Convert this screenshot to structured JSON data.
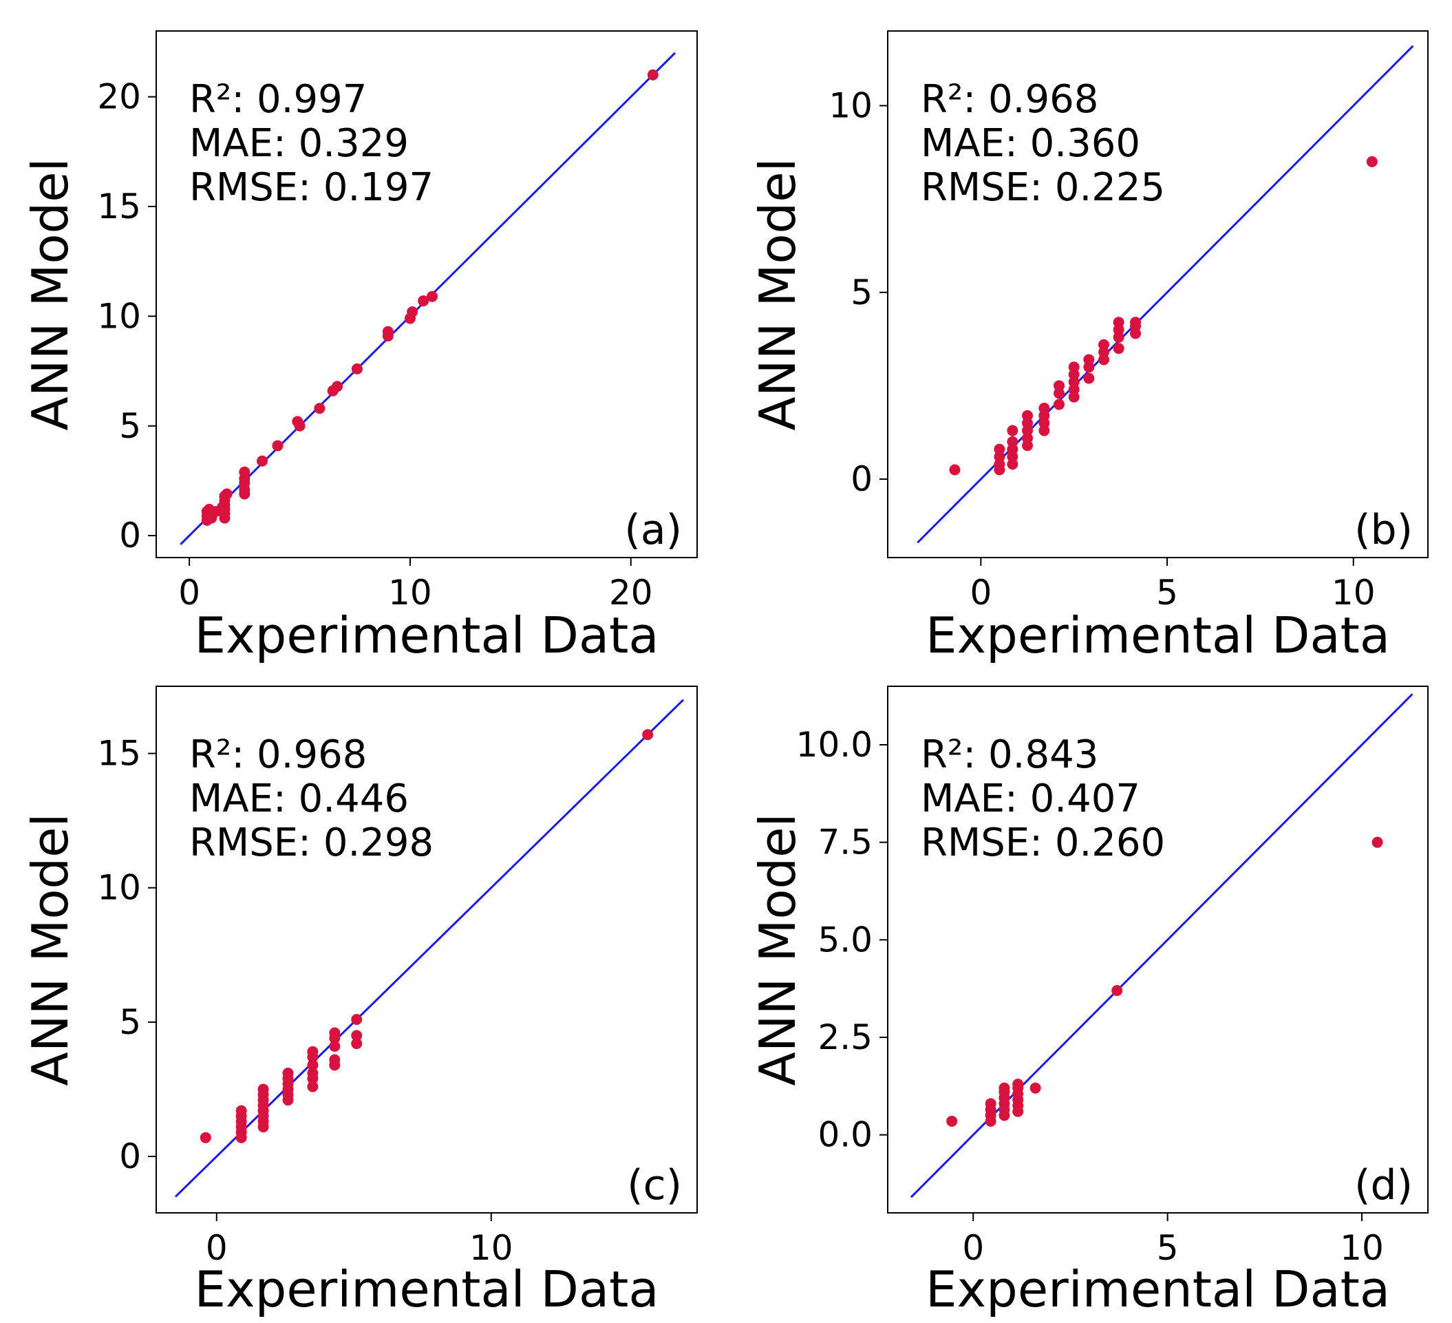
{
  "chart_data": [
    {
      "type": "scatter",
      "panel_label": "(a)",
      "xlabel": "Experimental Data",
      "ylabel": "ANN Model",
      "xlim": [
        -1.5,
        23.0
      ],
      "ylim": [
        -1.0,
        23.0
      ],
      "xticks": [
        0,
        10,
        20
      ],
      "yticks": [
        0,
        5,
        10,
        15,
        20
      ],
      "stats": [
        "R²: 0.997",
        "MAE: 0.329",
        "RMSE: 0.197"
      ],
      "fit_line": {
        "x": [
          -0.4,
          22.0
        ],
        "y": [
          -0.4,
          22.0
        ]
      },
      "points": [
        [
          0.8,
          0.7
        ],
        [
          0.8,
          0.9
        ],
        [
          0.8,
          1.1
        ],
        [
          0.9,
          1.2
        ],
        [
          1.0,
          1.0
        ],
        [
          1.0,
          0.8
        ],
        [
          1.2,
          1.1
        ],
        [
          1.6,
          0.8
        ],
        [
          1.6,
          1.0
        ],
        [
          1.6,
          1.2
        ],
        [
          1.6,
          1.4
        ],
        [
          1.6,
          1.6
        ],
        [
          1.6,
          1.8
        ],
        [
          1.7,
          1.9
        ],
        [
          1.5,
          1.3
        ],
        [
          2.5,
          1.9
        ],
        [
          2.5,
          2.1
        ],
        [
          2.5,
          2.4
        ],
        [
          2.5,
          2.6
        ],
        [
          2.5,
          2.9
        ],
        [
          3.3,
          3.4
        ],
        [
          4.0,
          4.1
        ],
        [
          4.9,
          5.2
        ],
        [
          5.0,
          5.0
        ],
        [
          5.9,
          5.8
        ],
        [
          6.5,
          6.6
        ],
        [
          6.7,
          6.8
        ],
        [
          7.6,
          7.6
        ],
        [
          9.0,
          9.1
        ],
        [
          9.0,
          9.3
        ],
        [
          10.0,
          9.9
        ],
        [
          10.1,
          10.2
        ],
        [
          10.6,
          10.7
        ],
        [
          11.0,
          10.9
        ],
        [
          21.0,
          21.0
        ]
      ],
      "colors": {
        "points": "#d8123e",
        "line": "#1a1af0"
      }
    },
    {
      "type": "scatter",
      "panel_label": "(b)",
      "xlabel": "Experimental Data",
      "ylabel": "ANN Model",
      "xlim": [
        -2.5,
        12.0
      ],
      "ylim": [
        -2.1,
        12.0
      ],
      "xticks": [
        0,
        5,
        10
      ],
      "yticks": [
        0,
        5,
        10
      ],
      "stats": [
        "R²: 0.968",
        "MAE: 0.360",
        "RMSE: 0.225"
      ],
      "fit_line": {
        "x": [
          -1.7,
          11.6
        ],
        "y": [
          -1.7,
          11.6
        ]
      },
      "points": [
        [
          -0.7,
          0.25
        ],
        [
          0.5,
          0.25
        ],
        [
          0.5,
          0.4
        ],
        [
          0.5,
          0.6
        ],
        [
          0.5,
          0.8
        ],
        [
          0.85,
          0.4
        ],
        [
          0.85,
          0.6
        ],
        [
          0.85,
          0.8
        ],
        [
          0.85,
          1.0
        ],
        [
          0.85,
          1.3
        ],
        [
          1.25,
          0.9
        ],
        [
          1.25,
          1.1
        ],
        [
          1.25,
          1.3
        ],
        [
          1.25,
          1.5
        ],
        [
          1.25,
          1.7
        ],
        [
          1.7,
          1.3
        ],
        [
          1.7,
          1.5
        ],
        [
          1.7,
          1.7
        ],
        [
          1.7,
          1.9
        ],
        [
          2.1,
          2.0
        ],
        [
          2.1,
          2.3
        ],
        [
          2.1,
          2.5
        ],
        [
          2.5,
          2.2
        ],
        [
          2.5,
          2.4
        ],
        [
          2.5,
          2.6
        ],
        [
          2.5,
          2.8
        ],
        [
          2.5,
          3.0
        ],
        [
          2.9,
          2.7
        ],
        [
          2.9,
          3.0
        ],
        [
          2.9,
          3.2
        ],
        [
          3.3,
          3.2
        ],
        [
          3.3,
          3.4
        ],
        [
          3.3,
          3.6
        ],
        [
          3.7,
          3.5
        ],
        [
          3.7,
          3.8
        ],
        [
          3.7,
          4.0
        ],
        [
          3.7,
          4.2
        ],
        [
          4.15,
          3.9
        ],
        [
          4.15,
          4.1
        ],
        [
          4.15,
          4.2
        ],
        [
          10.5,
          8.5
        ]
      ],
      "colors": {
        "points": "#d8123e",
        "line": "#1a1af0"
      }
    },
    {
      "type": "scatter",
      "panel_label": "(c)",
      "xlabel": "Experimental Data",
      "ylabel": "ANN Model",
      "xlim": [
        -2.2,
        17.5
      ],
      "ylim": [
        -2.1,
        17.5
      ],
      "xticks": [
        0,
        10
      ],
      "yticks": [
        0,
        5,
        10,
        15
      ],
      "stats": [
        "R²: 0.968",
        "MAE: 0.446",
        "RMSE: 0.298"
      ],
      "fit_line": {
        "x": [
          -1.5,
          17.0
        ],
        "y": [
          -1.5,
          17.0
        ]
      },
      "points": [
        [
          -0.4,
          0.7
        ],
        [
          0.9,
          0.7
        ],
        [
          0.9,
          0.9
        ],
        [
          0.9,
          1.1
        ],
        [
          0.9,
          1.3
        ],
        [
          0.9,
          1.5
        ],
        [
          0.9,
          1.7
        ],
        [
          1.7,
          1.1
        ],
        [
          1.7,
          1.3
        ],
        [
          1.7,
          1.5
        ],
        [
          1.7,
          1.7
        ],
        [
          1.7,
          1.9
        ],
        [
          1.7,
          2.1
        ],
        [
          1.7,
          2.3
        ],
        [
          1.7,
          2.5
        ],
        [
          2.6,
          2.1
        ],
        [
          2.6,
          2.3
        ],
        [
          2.6,
          2.5
        ],
        [
          2.6,
          2.7
        ],
        [
          2.6,
          2.9
        ],
        [
          2.6,
          3.1
        ],
        [
          3.5,
          2.6
        ],
        [
          3.5,
          2.9
        ],
        [
          3.5,
          3.1
        ],
        [
          3.5,
          3.4
        ],
        [
          3.5,
          3.7
        ],
        [
          3.5,
          3.9
        ],
        [
          4.3,
          3.4
        ],
        [
          4.3,
          3.6
        ],
        [
          4.3,
          4.1
        ],
        [
          4.3,
          4.4
        ],
        [
          4.3,
          4.6
        ],
        [
          5.1,
          4.2
        ],
        [
          5.1,
          4.5
        ],
        [
          5.1,
          5.1
        ],
        [
          15.7,
          15.7
        ]
      ],
      "colors": {
        "points": "#d8123e",
        "line": "#1a1af0"
      }
    },
    {
      "type": "scatter",
      "panel_label": "(d)",
      "xlabel": "Experimental Data",
      "ylabel": "ANN Model",
      "xlim": [
        -2.2,
        11.7
      ],
      "ylim": [
        -2.0,
        11.5
      ],
      "xticks": [
        0,
        5,
        10
      ],
      "xtick_labels": [
        "0",
        "5",
        "10"
      ],
      "yticks": [
        0.0,
        2.5,
        5.0,
        7.5,
        10.0
      ],
      "ytick_labels": [
        "0.0",
        "2.5",
        "5.0",
        "7.5",
        "10.0"
      ],
      "stats": [
        "R²: 0.843",
        "MAE: 0.407",
        "RMSE: 0.260"
      ],
      "fit_line": {
        "x": [
          -1.6,
          11.3
        ],
        "y": [
          -1.6,
          11.3
        ]
      },
      "points": [
        [
          -0.55,
          0.35
        ],
        [
          0.45,
          0.35
        ],
        [
          0.45,
          0.5
        ],
        [
          0.45,
          0.65
        ],
        [
          0.45,
          0.8
        ],
        [
          0.8,
          0.5
        ],
        [
          0.8,
          0.65
        ],
        [
          0.8,
          0.8
        ],
        [
          0.8,
          0.95
        ],
        [
          0.8,
          1.1
        ],
        [
          0.8,
          1.2
        ],
        [
          1.15,
          0.6
        ],
        [
          1.15,
          0.75
        ],
        [
          1.15,
          0.9
        ],
        [
          1.15,
          1.05
        ],
        [
          1.15,
          1.2
        ],
        [
          1.15,
          1.3
        ],
        [
          1.6,
          1.2
        ],
        [
          3.7,
          3.7
        ],
        [
          10.4,
          7.5
        ]
      ],
      "colors": {
        "points": "#d8123e",
        "line": "#1a1af0"
      }
    }
  ]
}
